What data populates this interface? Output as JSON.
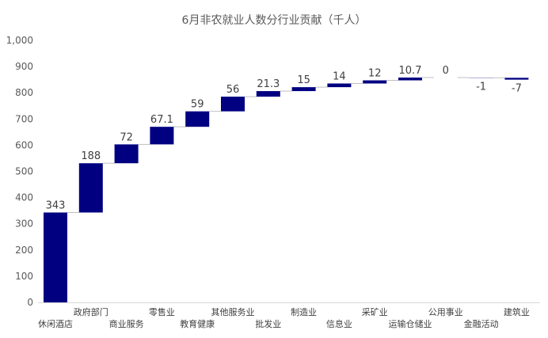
{
  "chart_data": {
    "type": "bar",
    "subtype": "waterfall",
    "title": "6月非农就业人数分行业贡献（千人）",
    "categories": [
      "休闲酒店",
      "政府部门",
      "商业服务",
      "零售业",
      "教育健康",
      "其他服务业",
      "批发业",
      "制造业",
      "信息业",
      "采矿业",
      "运输仓储业",
      "公用事业",
      "金融活动",
      "建筑业"
    ],
    "values": [
      343,
      188,
      72,
      67.1,
      59,
      56,
      21.3,
      15,
      14,
      12,
      10.7,
      0,
      -1,
      -7
    ],
    "value_labels": [
      "343",
      "188",
      "72",
      "67.1",
      "59",
      "56",
      "21.3",
      "15",
      "14",
      "12",
      "10.7",
      "0",
      "-1",
      "-7"
    ],
    "ylim": [
      0,
      1000
    ],
    "yticks": [
      "0",
      "100",
      "200",
      "300",
      "400",
      "500",
      "600",
      "700",
      "800",
      "900",
      "1,000"
    ],
    "xlabel": "",
    "ylabel": "",
    "grid": false,
    "legend": "none",
    "bar_color": "#000080",
    "connector_color": "#bfbfbf"
  }
}
